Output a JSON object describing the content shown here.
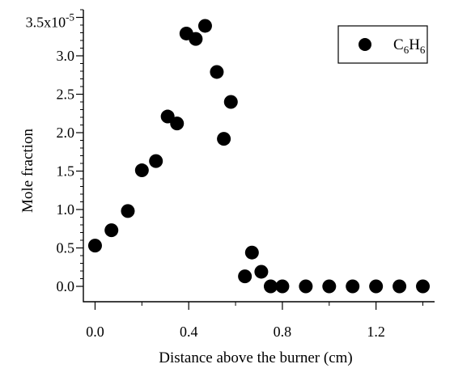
{
  "chart_data": {
    "type": "scatter",
    "xlabel": "Distance above the burner (cm)",
    "ylabel": "Mole fraction",
    "xlim": [
      -0.05,
      1.45
    ],
    "ylim": [
      -2e-06,
      3.6e-05
    ],
    "x_ticks": [
      {
        "value": 0.0,
        "label": "0.0"
      },
      {
        "value": 0.4,
        "label": "0.4"
      },
      {
        "value": 0.8,
        "label": "0.8"
      },
      {
        "value": 1.2,
        "label": "1.2"
      }
    ],
    "x_minor_ticks": [
      0.2,
      0.6,
      1.0,
      1.4
    ],
    "y_ticks": [
      {
        "value": 0.0,
        "label": "0.0"
      },
      {
        "value": 5e-06,
        "label": "0.5"
      },
      {
        "value": 1e-05,
        "label": "1.0"
      },
      {
        "value": 1.5e-05,
        "label": "1.5"
      },
      {
        "value": 2e-05,
        "label": "2.0"
      },
      {
        "value": 2.5e-05,
        "label": "2.5"
      },
      {
        "value": 3e-05,
        "label": "3.0"
      }
    ],
    "y_top_label": {
      "value": 3.5e-05,
      "mantissa": "3.5x10",
      "exponent": "-5"
    },
    "y_minor_step": 1e-06,
    "legend": {
      "position": "top-right",
      "base": "C",
      "sub1": "6",
      "mid": "H",
      "sub2": "6"
    },
    "series": [
      {
        "name": "C6H6",
        "color": "#000000",
        "marker": "circle",
        "points": [
          {
            "x": 0.0,
            "y": 5.3e-06
          },
          {
            "x": 0.07,
            "y": 7.3e-06
          },
          {
            "x": 0.14,
            "y": 9.8e-06
          },
          {
            "x": 0.2,
            "y": 1.51e-05
          },
          {
            "x": 0.26,
            "y": 1.63e-05
          },
          {
            "x": 0.31,
            "y": 2.21e-05
          },
          {
            "x": 0.35,
            "y": 2.12e-05
          },
          {
            "x": 0.39,
            "y": 3.29e-05
          },
          {
            "x": 0.43,
            "y": 3.22e-05
          },
          {
            "x": 0.47,
            "y": 3.39e-05
          },
          {
            "x": 0.52,
            "y": 2.79e-05
          },
          {
            "x": 0.55,
            "y": 1.92e-05
          },
          {
            "x": 0.58,
            "y": 2.4e-05
          },
          {
            "x": 0.64,
            "y": 1.3e-06
          },
          {
            "x": 0.67,
            "y": 4.4e-06
          },
          {
            "x": 0.71,
            "y": 1.9e-06
          },
          {
            "x": 0.75,
            "y": 0.0
          },
          {
            "x": 0.8,
            "y": 0.0
          },
          {
            "x": 0.9,
            "y": 0.0
          },
          {
            "x": 1.0,
            "y": 0.0
          },
          {
            "x": 1.1,
            "y": 0.0
          },
          {
            "x": 1.2,
            "y": 0.0
          },
          {
            "x": 1.3,
            "y": 0.0
          },
          {
            "x": 1.4,
            "y": 0.0
          }
        ]
      }
    ]
  }
}
